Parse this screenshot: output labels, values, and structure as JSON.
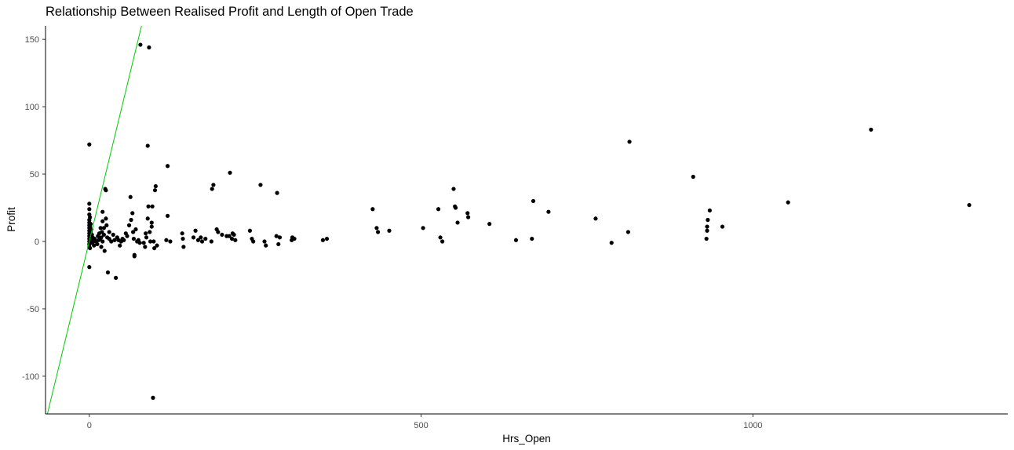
{
  "chart_data": {
    "type": "scatter",
    "title": "Relationship Between Realised Profit and Length of Open Trade",
    "xlabel": "Hrs_Open",
    "ylabel": "Profit",
    "xlim": [
      -66,
      1384
    ],
    "ylim": [
      -128,
      160
    ],
    "x_ticks": [
      0,
      500,
      1000
    ],
    "x_tick_labels": [
      "0",
      "500",
      "1000"
    ],
    "y_ticks": [
      -100,
      -50,
      0,
      50,
      100,
      150
    ],
    "y_tick_labels": [
      "-100",
      "-50",
      "0",
      "50",
      "100",
      "150"
    ],
    "grid": false,
    "legend": "none",
    "point_color": "#000000",
    "trend_line": {
      "color": "#00cc00",
      "slope": 2.03,
      "intercept": 0.3
    },
    "series": [
      {
        "points": [
          [
            0,
            72
          ],
          [
            0,
            -19
          ],
          [
            0,
            28
          ],
          [
            0,
            24
          ],
          [
            0,
            20
          ],
          [
            0,
            16
          ],
          [
            0,
            14
          ],
          [
            0,
            12
          ],
          [
            0,
            10
          ],
          [
            0,
            8
          ],
          [
            0,
            6
          ],
          [
            0,
            4
          ],
          [
            0,
            2
          ],
          [
            0,
            0
          ],
          [
            0,
            -2
          ],
          [
            0,
            -4
          ],
          [
            1,
            18
          ],
          [
            1,
            11
          ],
          [
            1,
            5
          ],
          [
            1,
            -5
          ],
          [
            2,
            13
          ],
          [
            2,
            7
          ],
          [
            3,
            9
          ],
          [
            3,
            1
          ],
          [
            3,
            -1
          ],
          [
            4,
            5
          ],
          [
            5,
            3
          ],
          [
            6,
            0
          ],
          [
            7,
            -3
          ],
          [
            8,
            2
          ],
          [
            10,
            0
          ],
          [
            12,
            -2
          ],
          [
            13,
            4
          ],
          [
            14,
            1
          ],
          [
            15,
            6
          ],
          [
            16,
            2
          ],
          [
            17,
            10
          ],
          [
            18,
            3
          ],
          [
            18,
            -4
          ],
          [
            19,
            7
          ],
          [
            20,
            0
          ],
          [
            20,
            22
          ],
          [
            20,
            15
          ],
          [
            22,
            10
          ],
          [
            22,
            5
          ],
          [
            23,
            -7
          ],
          [
            24,
            39
          ],
          [
            25,
            38
          ],
          [
            25,
            17
          ],
          [
            26,
            12
          ],
          [
            27,
            3
          ],
          [
            28,
            -23
          ],
          [
            30,
            7
          ],
          [
            30,
            2
          ],
          [
            33,
            0
          ],
          [
            36,
            5
          ],
          [
            38,
            1
          ],
          [
            40,
            -27
          ],
          [
            42,
            3
          ],
          [
            44,
            1
          ],
          [
            46,
            -3
          ],
          [
            48,
            0
          ],
          [
            50,
            2
          ],
          [
            52,
            1
          ],
          [
            55,
            6
          ],
          [
            57,
            4
          ],
          [
            60,
            12
          ],
          [
            62,
            33
          ],
          [
            63,
            16
          ],
          [
            65,
            21
          ],
          [
            66,
            7
          ],
          [
            67,
            2
          ],
          [
            68,
            -10
          ],
          [
            68,
            -11
          ],
          [
            70,
            9
          ],
          [
            72,
            0
          ],
          [
            74,
            1
          ],
          [
            76,
            -1
          ],
          [
            77,
            146
          ],
          [
            82,
            -1
          ],
          [
            84,
            -4
          ],
          [
            85,
            6
          ],
          [
            86,
            3
          ],
          [
            88,
            71
          ],
          [
            88,
            17
          ],
          [
            89,
            26
          ],
          [
            90,
            144
          ],
          [
            91,
            7
          ],
          [
            92,
            0
          ],
          [
            94,
            11
          ],
          [
            94,
            14
          ],
          [
            95,
            26
          ],
          [
            96,
            -116
          ],
          [
            97,
            0
          ],
          [
            98,
            -5
          ],
          [
            99,
            38
          ],
          [
            100,
            41
          ],
          [
            102,
            -3
          ],
          [
            116,
            1
          ],
          [
            118,
            56
          ],
          [
            118,
            19
          ],
          [
            122,
            0
          ],
          [
            140,
            6
          ],
          [
            141,
            2
          ],
          [
            142,
            -4
          ],
          [
            157,
            3
          ],
          [
            160,
            8
          ],
          [
            164,
            1
          ],
          [
            168,
            3
          ],
          [
            170,
            0
          ],
          [
            175,
            2
          ],
          [
            184,
            0
          ],
          [
            185,
            39
          ],
          [
            187,
            42
          ],
          [
            192,
            9
          ],
          [
            194,
            7
          ],
          [
            200,
            5
          ],
          [
            207,
            4
          ],
          [
            211,
            4
          ],
          [
            212,
            51
          ],
          [
            215,
            2
          ],
          [
            216,
            6
          ],
          [
            218,
            5
          ],
          [
            220,
            1
          ],
          [
            242,
            8
          ],
          [
            245,
            2
          ],
          [
            247,
            0
          ],
          [
            258,
            42
          ],
          [
            264,
            0
          ],
          [
            266,
            -3
          ],
          [
            282,
            4
          ],
          [
            283,
            36
          ],
          [
            285,
            -2
          ],
          [
            287,
            3
          ],
          [
            305,
            1
          ],
          [
            306,
            3
          ],
          [
            309,
            2
          ],
          [
            352,
            1
          ],
          [
            358,
            2
          ],
          [
            427,
            24
          ],
          [
            433,
            10
          ],
          [
            435,
            7
          ],
          [
            452,
            8
          ],
          [
            503,
            10
          ],
          [
            526,
            24
          ],
          [
            529,
            3
          ],
          [
            532,
            0
          ],
          [
            549,
            39
          ],
          [
            551,
            26
          ],
          [
            552,
            25
          ],
          [
            555,
            14
          ],
          [
            570,
            21
          ],
          [
            571,
            18
          ],
          [
            603,
            13
          ],
          [
            643,
            1
          ],
          [
            667,
            2
          ],
          [
            669,
            30
          ],
          [
            692,
            22
          ],
          [
            763,
            17
          ],
          [
            787,
            -1
          ],
          [
            812,
            7
          ],
          [
            814,
            74
          ],
          [
            910,
            48
          ],
          [
            930,
            2
          ],
          [
            931,
            8
          ],
          [
            931,
            11
          ],
          [
            932,
            16
          ],
          [
            935,
            23
          ],
          [
            954,
            11
          ],
          [
            1053,
            29
          ],
          [
            1178,
            83
          ],
          [
            1326,
            27
          ]
        ]
      }
    ]
  }
}
